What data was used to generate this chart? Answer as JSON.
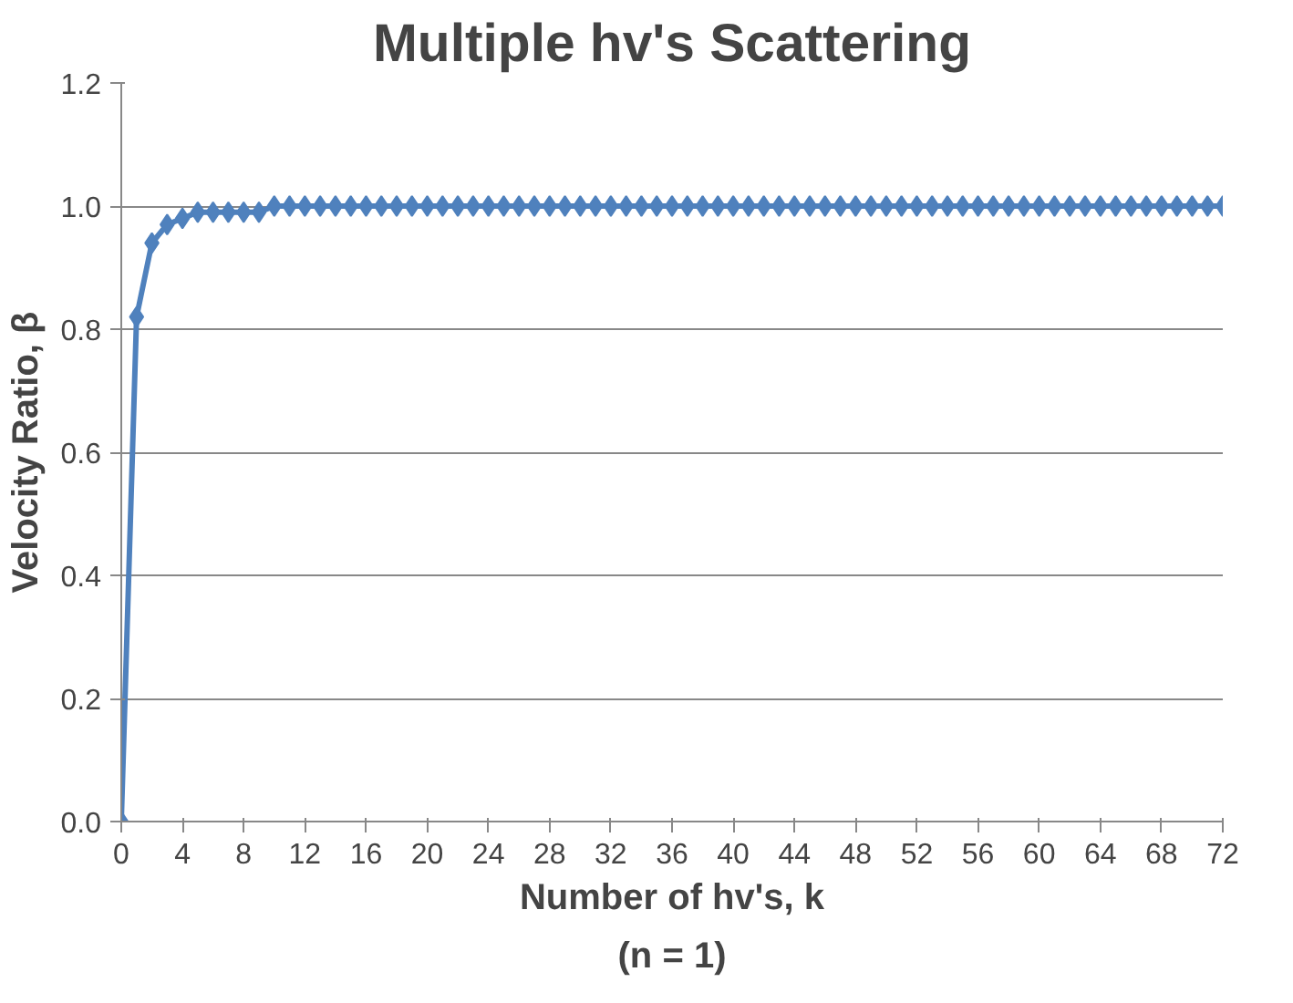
{
  "chart_data": {
    "type": "line",
    "title": "Multiple hv's Scattering",
    "xlabel": "Number of hv's, k",
    "ylabel": "Velocity Ratio, β",
    "annotations": [
      "(n = 1)"
    ],
    "x": [
      0,
      1,
      2,
      3,
      4,
      5,
      6,
      7,
      8,
      9,
      10,
      11,
      12,
      13,
      14,
      15,
      16,
      17,
      18,
      19,
      20,
      21,
      22,
      23,
      24,
      25,
      26,
      27,
      28,
      29,
      30,
      31,
      32,
      33,
      34,
      35,
      36,
      37,
      38,
      39,
      40,
      41,
      42,
      43,
      44,
      45,
      46,
      47,
      48,
      49,
      50,
      51,
      52,
      53,
      54,
      55,
      56,
      57,
      58,
      59,
      60,
      61,
      62,
      63,
      64,
      65,
      66,
      67,
      68,
      69,
      70,
      71,
      72
    ],
    "series": [
      {
        "color": "#4f81bd",
        "values": [
          0,
          0.82,
          0.94,
          0.97,
          0.98,
          0.99,
          0.99,
          0.99,
          0.99,
          0.99,
          1,
          1,
          1,
          1,
          1,
          1,
          1,
          1,
          1,
          1,
          1,
          1,
          1,
          1,
          1,
          1,
          1,
          1,
          1,
          1,
          1,
          1,
          1,
          1,
          1,
          1,
          1,
          1,
          1,
          1,
          1,
          1,
          1,
          1,
          1,
          1,
          1,
          1,
          1,
          1,
          1,
          1,
          1,
          1,
          1,
          1,
          1,
          1,
          1,
          1,
          1,
          1,
          1,
          1,
          1,
          1,
          1,
          1,
          1,
          1,
          1,
          1,
          1
        ]
      }
    ],
    "xlim": [
      0,
      72
    ],
    "xticks": [
      0,
      4,
      8,
      12,
      16,
      20,
      24,
      28,
      32,
      36,
      40,
      44,
      48,
      52,
      56,
      60,
      64,
      68,
      72
    ],
    "ylim": [
      0,
      1.2
    ],
    "yticks": [
      {
        "value": 0,
        "label": "0.0"
      },
      {
        "value": 0.2,
        "label": "0.2"
      },
      {
        "value": 0.4,
        "label": "0.4"
      },
      {
        "value": 0.6,
        "label": "0.6"
      },
      {
        "value": 0.8,
        "label": "0.8"
      },
      {
        "value": 1,
        "label": "1.0"
      },
      {
        "value": 1.2,
        "label": "1.2"
      }
    ],
    "grid": "y",
    "marker": "diamond",
    "line_style": "solid"
  }
}
